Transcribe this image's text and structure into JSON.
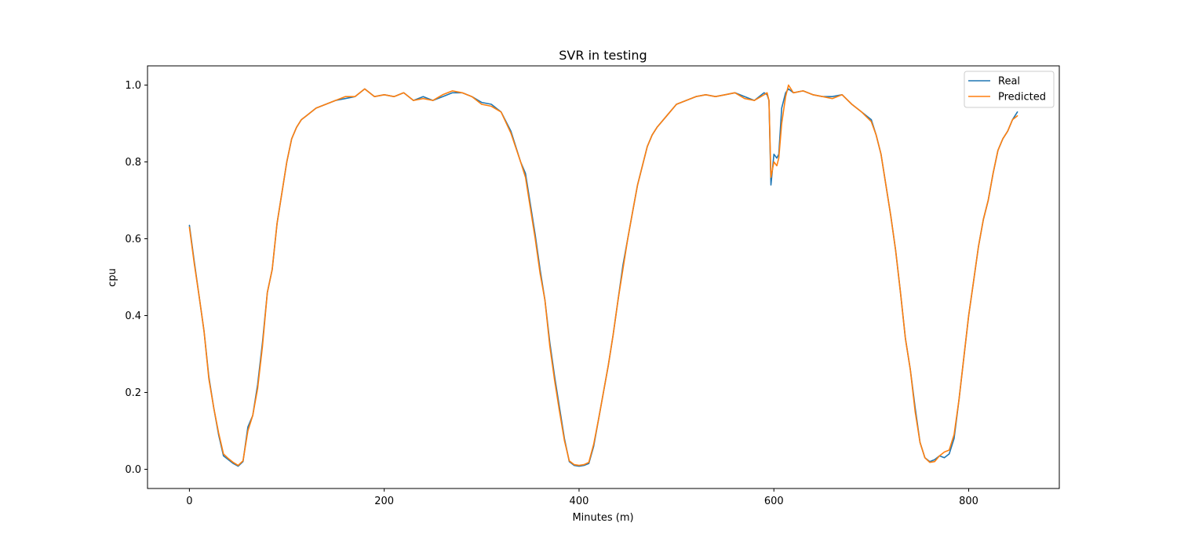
{
  "chart_data": {
    "type": "line",
    "title": "SVR in testing",
    "xlabel": "Minutes (m)",
    "ylabel": "cpu",
    "xlim": [
      -43,
      893
    ],
    "ylim": [
      -0.05,
      1.05
    ],
    "x_ticks": [
      0,
      200,
      400,
      600,
      800
    ],
    "x_tick_labels": [
      "0",
      "200",
      "400",
      "600",
      "800"
    ],
    "y_ticks": [
      0.0,
      0.2,
      0.4,
      0.6,
      0.8,
      1.0
    ],
    "y_tick_labels": [
      "0.0",
      "0.2",
      "0.4",
      "0.6",
      "0.8",
      "1.0"
    ],
    "grid": false,
    "legend_position": "top-right",
    "colors": {
      "real": "#1f77b4",
      "predicted": "#ff7f0e"
    },
    "x": [
      0,
      5,
      10,
      15,
      20,
      25,
      30,
      35,
      40,
      45,
      50,
      55,
      60,
      65,
      70,
      75,
      80,
      85,
      90,
      95,
      100,
      105,
      110,
      115,
      120,
      130,
      140,
      150,
      160,
      170,
      180,
      190,
      200,
      210,
      220,
      230,
      240,
      250,
      260,
      270,
      280,
      290,
      300,
      310,
      320,
      330,
      340,
      345,
      350,
      355,
      360,
      365,
      370,
      375,
      380,
      385,
      390,
      395,
      400,
      405,
      410,
      415,
      420,
      425,
      430,
      435,
      440,
      445,
      450,
      455,
      460,
      465,
      470,
      475,
      480,
      490,
      500,
      510,
      520,
      530,
      540,
      550,
      560,
      570,
      580,
      590,
      593,
      595,
      597,
      600,
      603,
      605,
      608,
      612,
      615,
      620,
      630,
      640,
      650,
      660,
      670,
      680,
      690,
      700,
      705,
      710,
      715,
      720,
      725,
      730,
      735,
      740,
      745,
      750,
      755,
      760,
      765,
      770,
      775,
      780,
      785,
      790,
      795,
      800,
      805,
      810,
      815,
      820,
      825,
      830,
      835,
      840,
      845,
      850
    ],
    "series": [
      {
        "name": "Real",
        "values": [
          0.635,
          0.54,
          0.45,
          0.36,
          0.24,
          0.16,
          0.09,
          0.035,
          0.025,
          0.015,
          0.008,
          0.02,
          0.11,
          0.14,
          0.22,
          0.33,
          0.46,
          0.52,
          0.64,
          0.72,
          0.8,
          0.86,
          0.89,
          0.91,
          0.92,
          0.94,
          0.95,
          0.96,
          0.965,
          0.97,
          0.99,
          0.97,
          0.975,
          0.97,
          0.98,
          0.96,
          0.97,
          0.96,
          0.97,
          0.98,
          0.98,
          0.97,
          0.955,
          0.95,
          0.93,
          0.88,
          0.8,
          0.77,
          0.69,
          0.61,
          0.52,
          0.44,
          0.33,
          0.24,
          0.16,
          0.08,
          0.02,
          0.01,
          0.008,
          0.01,
          0.015,
          0.06,
          0.13,
          0.2,
          0.27,
          0.35,
          0.44,
          0.53,
          0.6,
          0.67,
          0.74,
          0.79,
          0.84,
          0.87,
          0.89,
          0.92,
          0.95,
          0.96,
          0.97,
          0.975,
          0.97,
          0.975,
          0.98,
          0.97,
          0.96,
          0.98,
          0.975,
          0.96,
          0.74,
          0.82,
          0.81,
          0.82,
          0.94,
          0.98,
          0.99,
          0.98,
          0.985,
          0.975,
          0.97,
          0.97,
          0.975,
          0.95,
          0.93,
          0.91,
          0.87,
          0.82,
          0.74,
          0.66,
          0.57,
          0.46,
          0.34,
          0.26,
          0.16,
          0.07,
          0.03,
          0.02,
          0.025,
          0.035,
          0.03,
          0.04,
          0.08,
          0.18,
          0.29,
          0.4,
          0.49,
          0.58,
          0.65,
          0.7,
          0.77,
          0.83,
          0.86,
          0.88,
          0.91,
          0.93
        ]
      },
      {
        "name": "Predicted",
        "values": [
          0.63,
          0.535,
          0.45,
          0.36,
          0.235,
          0.16,
          0.095,
          0.04,
          0.028,
          0.018,
          0.01,
          0.022,
          0.1,
          0.14,
          0.21,
          0.32,
          0.46,
          0.52,
          0.64,
          0.72,
          0.8,
          0.86,
          0.89,
          0.91,
          0.92,
          0.94,
          0.95,
          0.96,
          0.97,
          0.97,
          0.99,
          0.97,
          0.975,
          0.97,
          0.98,
          0.96,
          0.965,
          0.96,
          0.975,
          0.985,
          0.98,
          0.97,
          0.95,
          0.945,
          0.93,
          0.875,
          0.8,
          0.76,
          0.68,
          0.6,
          0.51,
          0.44,
          0.32,
          0.23,
          0.15,
          0.075,
          0.022,
          0.012,
          0.01,
          0.012,
          0.018,
          0.065,
          0.13,
          0.2,
          0.27,
          0.35,
          0.44,
          0.52,
          0.6,
          0.67,
          0.74,
          0.79,
          0.84,
          0.87,
          0.89,
          0.92,
          0.95,
          0.96,
          0.97,
          0.975,
          0.97,
          0.975,
          0.98,
          0.965,
          0.96,
          0.975,
          0.98,
          0.96,
          0.76,
          0.8,
          0.79,
          0.81,
          0.9,
          0.97,
          1.0,
          0.98,
          0.985,
          0.975,
          0.97,
          0.965,
          0.975,
          0.95,
          0.93,
          0.905,
          0.87,
          0.82,
          0.74,
          0.66,
          0.57,
          0.46,
          0.34,
          0.26,
          0.15,
          0.07,
          0.03,
          0.018,
          0.02,
          0.035,
          0.045,
          0.05,
          0.09,
          0.18,
          0.29,
          0.4,
          0.49,
          0.58,
          0.65,
          0.7,
          0.77,
          0.83,
          0.86,
          0.88,
          0.91,
          0.92
        ]
      }
    ]
  }
}
